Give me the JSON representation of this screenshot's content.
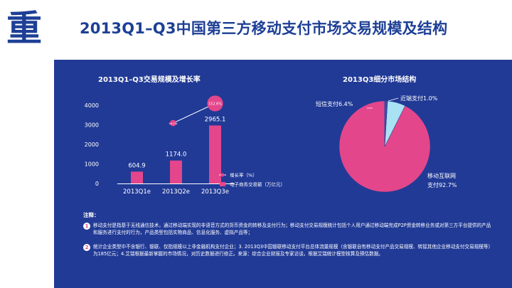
{
  "header": {
    "logo_char": "重",
    "title": "2013Q1–Q3中国第三方移动支付市场交易规模及结构"
  },
  "chart_data": [
    {
      "type": "bar",
      "title": "2013Q1–Q3交易规模及增长率",
      "categories": [
        "2013Q1e",
        "2013Q2e",
        "2013Q3e"
      ],
      "series": [
        {
          "name": "电子商务交易额（万亿元）",
          "values": [
            604.9,
            1174.0,
            2965.1
          ],
          "value_labels": [
            "604.9",
            "1174.0",
            "2965.1"
          ],
          "color": "#e3468b"
        },
        {
          "name": "增长率（%）",
          "type": "bubble-line",
          "values": [
            null,
            94.1,
            152.6
          ],
          "value_labels": [
            "",
            "94.1%",
            "152.6%"
          ],
          "color": "#e3468b"
        }
      ],
      "yticks": [
        "0",
        "1000",
        "2000",
        "3000",
        "4000"
      ],
      "ylim": [
        0,
        4000
      ],
      "legend": "right"
    },
    {
      "type": "pie",
      "title": "2013Q3细分市场结构",
      "slices": [
        {
          "label": "移动互联网",
          "value_label": "支付92.7%",
          "value": 92.7,
          "color": "#e3468b"
        },
        {
          "label": "短信支付",
          "value_label": "6.4%",
          "value": 6.4,
          "color": "#a9e2f3"
        },
        {
          "label": "近端支付",
          "value_label": "1.0%",
          "value": 1.0,
          "color": "#3a4fa8"
        }
      ]
    }
  ],
  "notes": {
    "heading": "注释：",
    "items": [
      {
        "num": "1",
        "text": "移动支付是指基于无线通信技术，通过移动端实现的非语音方式的货币资金的转移及支付行为；移动支付交易规模统计包括个人用户通过移动端完成P2P资金转移业务或对第三方平台提供的产品和服务进行支付的行为，产品类型包括实物商品、信息化服务、虚拟产品等；"
      },
      {
        "num": "2",
        "text": "统计企业类型中不含银行、银联、仅指规模以上非金融机构支付企业；3. 2013Q3中国银联移动支付平台总体流量规模（含银联自有移动支付产品交易规模、转接其他企业移动支付交易规模等）为185亿元；4.艾瑞根据最新掌握的市场情况，对历史数据进行修正。来源：综合企业财报及专家访谈，根据艾瑞统计模型核算及预估数据。"
      }
    ]
  },
  "colors": {
    "panel": "#213a96",
    "accent": "#e3468b",
    "brand": "#1d3f95"
  }
}
